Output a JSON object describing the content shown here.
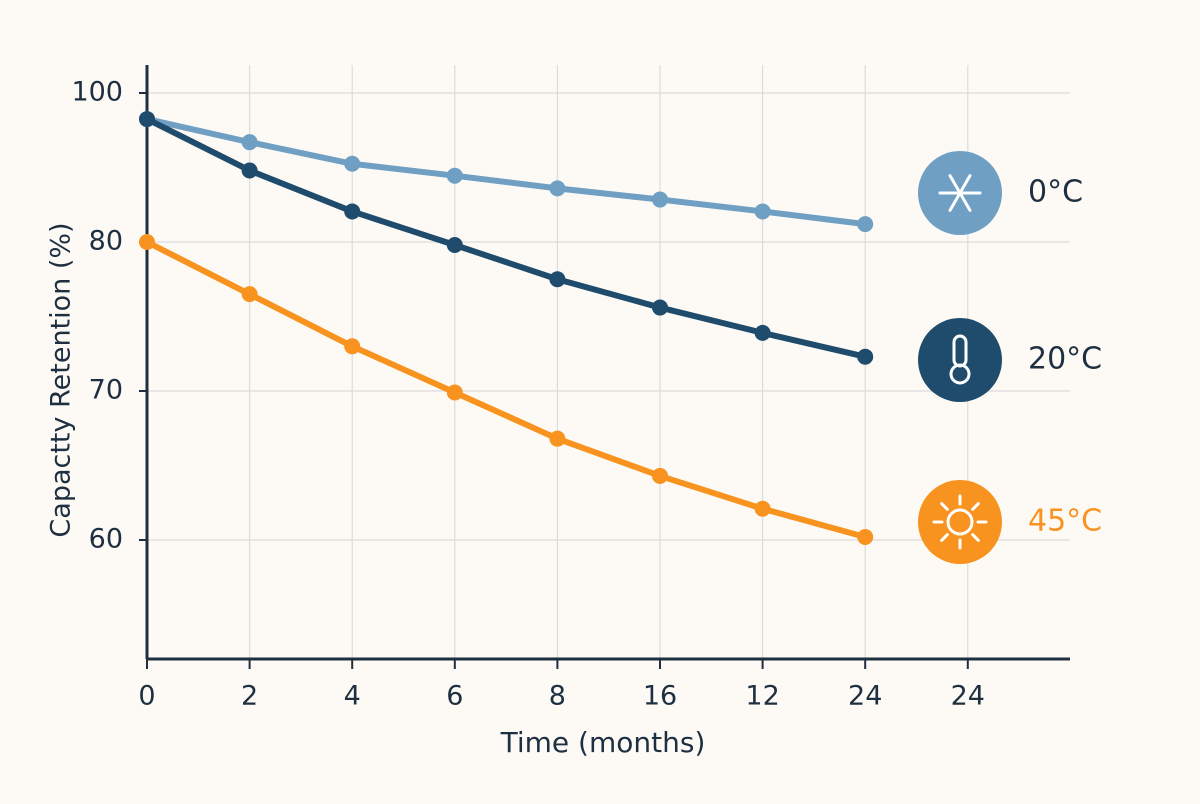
{
  "chart_data": {
    "type": "line",
    "y_label": "Capactty Retention (%)",
    "x_label": "Time (months)",
    "categories": [
      "0",
      "2",
      "4",
      "6",
      "8",
      "16",
      "12",
      "24",
      "24"
    ],
    "ylim": [
      52,
      103
    ],
    "yticks": [
      100,
      80,
      70,
      60
    ],
    "grid": true,
    "series": [
      {
        "name": "0°C",
        "color": "#6f9fc2",
        "values": [
          96.5,
          93.4,
          90.5,
          88.9,
          87.2,
          85.7,
          84.1,
          82.4,
          null
        ]
      },
      {
        "name": "20°C",
        "color": "#1f4c6c",
        "values": [
          96.5,
          89.6,
          84.1,
          79.8,
          77.5,
          75.6,
          73.9,
          72.3,
          null
        ]
      },
      {
        "name": "45°C",
        "color": "#f7931e",
        "values": [
          80,
          76.5,
          73.0,
          69.9,
          66.8,
          64.3,
          62.1,
          60.2,
          null
        ]
      }
    ]
  }
}
